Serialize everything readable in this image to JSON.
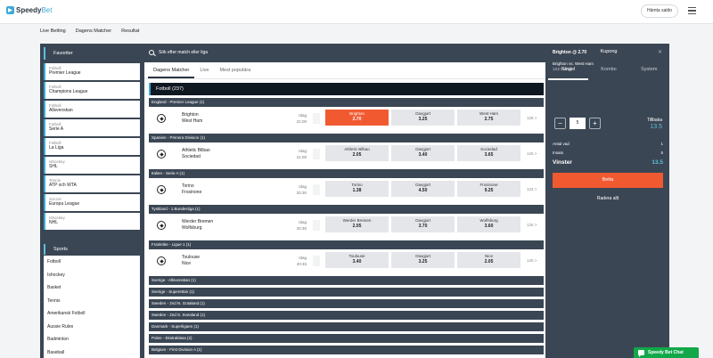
{
  "app": {
    "logo": "Speedy",
    "logo_accent": "Bet",
    "fetch_button": "Hämta saldo"
  },
  "nav": [
    "Live Betting",
    "Dagens Matcher",
    "Resultat"
  ],
  "favorites": {
    "title": "Favoriter",
    "items": [
      {
        "category": "Fotboll",
        "name": "Premier League"
      },
      {
        "category": "Fotboll",
        "name": "Champions League"
      },
      {
        "category": "Fotboll",
        "name": "Allsvenskan"
      },
      {
        "category": "Fotboll",
        "name": "Serie A"
      },
      {
        "category": "Fotboll",
        "name": "La Liga"
      },
      {
        "category": "Ishockey",
        "name": "SHL"
      },
      {
        "category": "Tennis",
        "name": "ATP och WTA"
      },
      {
        "category": "Soccer",
        "name": "Europa League"
      },
      {
        "category": "Ishockey",
        "name": "NHL"
      }
    ]
  },
  "sports": {
    "title": "Sports",
    "items": [
      "Fotboll",
      "Ishockey",
      "Basket",
      "Tennis",
      "Amerikansk Fotboll",
      "Aussie Rules",
      "Badminton",
      "Baseball"
    ]
  },
  "search": {
    "placeholder": "Sök efter match eller liga"
  },
  "tabs": [
    "Dagens Matcher",
    "Live",
    "Mest populära"
  ],
  "sport_header": "Fotboll (237)",
  "leagues": [
    {
      "name": "England - Premier League (1)",
      "match": {
        "home": "Brighton",
        "away": "West Ham",
        "day": "Idag",
        "time": "21:00",
        "odds": [
          {
            "label": "Brighton",
            "value": "2.70"
          },
          {
            "label": "Oavgjort",
            "value": "3.25"
          },
          {
            "label": "West Ham",
            "value": "2.75"
          }
        ],
        "more": "128 >"
      }
    },
    {
      "name": "Spanien - Primera Division (1)",
      "match": {
        "home": "Athletic Bilbao",
        "away": "Sociedad",
        "day": "Idag",
        "time": "21:00",
        "odds": [
          {
            "label": "Athletic Bilbao",
            "value": "2.05"
          },
          {
            "label": "Oavgjort",
            "value": "3.40"
          },
          {
            "label": "Sociedad",
            "value": "3.65"
          }
        ],
        "more": "126 >"
      }
    },
    {
      "name": "Italien - Serie A (1)",
      "match": {
        "home": "Torino",
        "away": "Frosinone",
        "day": "Idag",
        "time": "20:30",
        "odds": [
          {
            "label": "Torino",
            "value": "1.38"
          },
          {
            "label": "Oavgjort",
            "value": "4.50"
          },
          {
            "label": "Frosinone",
            "value": "9.25"
          }
        ],
        "more": "123 >"
      }
    },
    {
      "name": "Tyskland - 1.Bundesliga (1)",
      "match": {
        "home": "Werder Bremen",
        "away": "Wolfsburg",
        "day": "Idag",
        "time": "20:30",
        "odds": [
          {
            "label": "Werder Bremen",
            "value": "2.05"
          },
          {
            "label": "Oavgjort",
            "value": "3.70"
          },
          {
            "label": "Wolfsburg",
            "value": "3.60"
          }
        ],
        "more": "126 >"
      }
    },
    {
      "name": "Frankrike - Ligue 1 (1)",
      "match": {
        "home": "Toulouse",
        "away": "Nice",
        "day": "Idag",
        "time": "20:45",
        "odds": [
          {
            "label": "Toulouse",
            "value": "3.40"
          },
          {
            "label": "Oavgjort",
            "value": "3.25"
          },
          {
            "label": "Nice",
            "value": "2.05"
          }
        ],
        "more": "125 >"
      }
    }
  ],
  "collapsed_leagues": [
    "Sverige - Allsvenskan (1)",
    "Sverige - Superettan (1)",
    "Sweden - 2nd N. Gotaland (1)",
    "Sweden - 2nd S. Svealand (1)",
    "Danmark - Superligaen (1)",
    "Polen - Ekstraklasa (2)",
    "Belgium - First Division A (1)"
  ],
  "kupong": {
    "title": "Kupong",
    "tabs": [
      "Singel",
      "Kombo",
      "System"
    ],
    "pick": "Brighton @ 2.70",
    "match": "Brighton  vs. West Ham",
    "status": "1X2 Fulltid",
    "stake": "5",
    "return_label": "Tillbaka",
    "return_value": "13.5",
    "bets_label": "Antal vad",
    "bets_value": "1",
    "stake_label": "Insats",
    "stake_value": "5",
    "win_label": "Vinster",
    "win_value": "13.5",
    "bet_button": "Betta",
    "clear_button": "Radera allt"
  },
  "chat": {
    "label": "Speedy Bet Chat"
  },
  "colors": {
    "accent": "#f15a31",
    "brand": "#3ea9d6",
    "frame": "#3b4654",
    "chat": "#12a84a"
  }
}
